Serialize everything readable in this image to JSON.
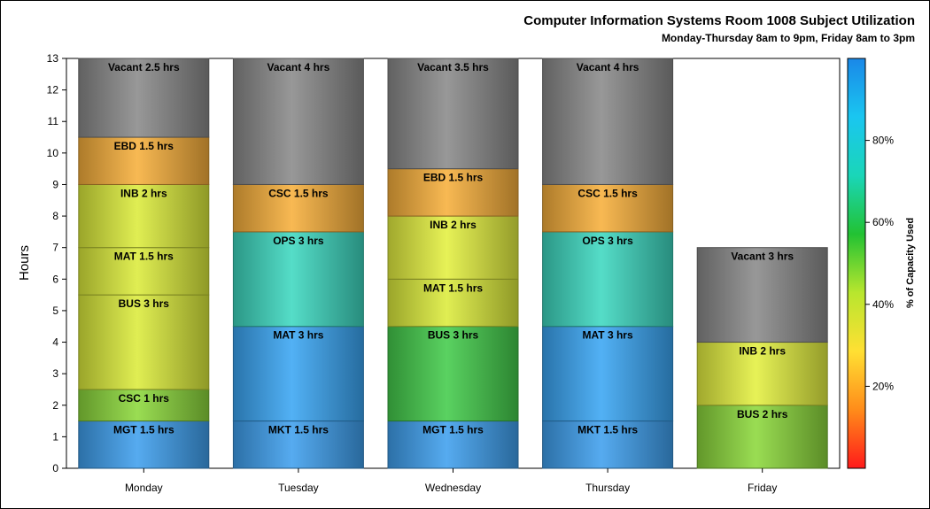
{
  "chart_data": {
    "type": "bar",
    "stacked": true,
    "title": "Computer Information Systems Room 1008 Subject Utilization",
    "subtitle": "Monday-Thursday 8am to 9pm, Friday 8am to 3pm",
    "ylabel": "Hours",
    "xlabel": "",
    "ylim": [
      0,
      13
    ],
    "yticks": [
      "0",
      "1",
      "2",
      "3",
      "4",
      "5",
      "6",
      "7",
      "8",
      "9",
      "10",
      "11",
      "12",
      "13"
    ],
    "categories": [
      "Monday",
      "Tuesday",
      "Wednesday",
      "Thursday",
      "Friday"
    ],
    "bars": [
      {
        "day": "Monday",
        "segments": [
          {
            "label": "MGT 1.5 hrs",
            "hours": 1.5,
            "color": "#3fa0ee"
          },
          {
            "label": "CSC 1 hrs",
            "hours": 1,
            "color": "#8cd83c"
          },
          {
            "label": "BUS 3 hrs",
            "hours": 3,
            "color": "#dcec3c"
          },
          {
            "label": "MAT 1.5 hrs",
            "hours": 1.5,
            "color": "#dcec3c"
          },
          {
            "label": "INB 2 hrs",
            "hours": 2,
            "color": "#dcec3c"
          },
          {
            "label": "EBD 1.5 hrs",
            "hours": 1.5,
            "color": "#f7b03c"
          },
          {
            "label": "Vacant 2.5 hrs",
            "hours": 2.5,
            "color": "#8a8a8a"
          }
        ]
      },
      {
        "day": "Tuesday",
        "segments": [
          {
            "label": "MKT 1.5 hrs",
            "hours": 1.5,
            "color": "#3fa0ee"
          },
          {
            "label": "MAT 3 hrs",
            "hours": 3,
            "color": "#3aa6f4"
          },
          {
            "label": "OPS 3 hrs",
            "hours": 3,
            "color": "#3ed8c0"
          },
          {
            "label": "CSC 1.5 hrs",
            "hours": 1.5,
            "color": "#f7b03c"
          },
          {
            "label": "Vacant 4 hrs",
            "hours": 4,
            "color": "#8a8a8a"
          }
        ]
      },
      {
        "day": "Wednesday",
        "segments": [
          {
            "label": "MGT 1.5 hrs",
            "hours": 1.5,
            "color": "#3fa0ee"
          },
          {
            "label": "BUS 3 hrs",
            "hours": 3,
            "color": "#44cc4c"
          },
          {
            "label": "MAT 1.5 hrs",
            "hours": 1.5,
            "color": "#dcec3c"
          },
          {
            "label": "INB 2 hrs",
            "hours": 2,
            "color": "#e4f040"
          },
          {
            "label": "EBD 1.5 hrs",
            "hours": 1.5,
            "color": "#f7b03c"
          },
          {
            "label": "Vacant 3.5 hrs",
            "hours": 3.5,
            "color": "#8a8a8a"
          }
        ]
      },
      {
        "day": "Thursday",
        "segments": [
          {
            "label": "MKT 1.5 hrs",
            "hours": 1.5,
            "color": "#3fa0ee"
          },
          {
            "label": "MAT 3 hrs",
            "hours": 3,
            "color": "#3aa6f4"
          },
          {
            "label": "OPS 3 hrs",
            "hours": 3,
            "color": "#3ed8c0"
          },
          {
            "label": "CSC 1.5 hrs",
            "hours": 1.5,
            "color": "#f7b03c"
          },
          {
            "label": "Vacant 4 hrs",
            "hours": 4,
            "color": "#8a8a8a"
          }
        ]
      },
      {
        "day": "Friday",
        "segments": [
          {
            "label": "BUS 2 hrs",
            "hours": 2,
            "color": "#8cd83c"
          },
          {
            "label": "INB 2 hrs",
            "hours": 2,
            "color": "#e4f040"
          },
          {
            "label": "Vacant 3 hrs",
            "hours": 3,
            "color": "#8a8a8a"
          }
        ]
      }
    ],
    "colorbar": {
      "label": "% of Capacity Used",
      "range": [
        0,
        100
      ],
      "ticks": [
        "20%",
        "40%",
        "60%",
        "80%"
      ],
      "tick_values": [
        20,
        40,
        60,
        80
      ],
      "stops": [
        "#ff1a1a",
        "#ff8c1a",
        "#ffe033",
        "#b8e62e",
        "#22c233",
        "#1ad6b8",
        "#1ac6f0",
        "#1a88e8"
      ]
    },
    "grid": false,
    "legend": "colorbar-right"
  }
}
